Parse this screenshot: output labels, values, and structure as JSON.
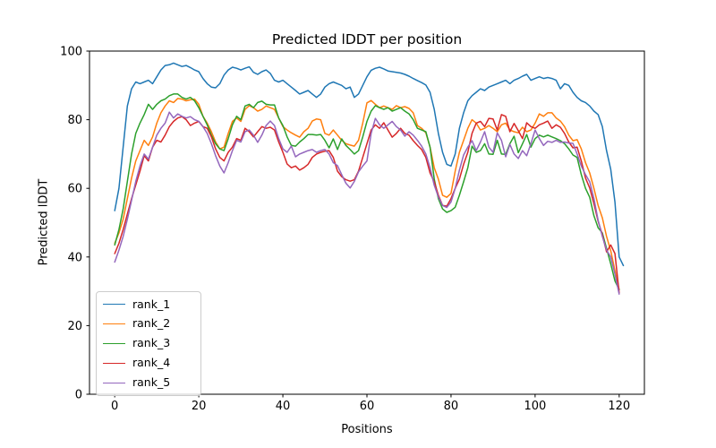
{
  "figure": {
    "title": "Predicted lDDT per position",
    "xlabel": "Positions",
    "ylabel": "Predicted lDDT"
  },
  "chart_data": {
    "type": "line",
    "title": "Predicted lDDT per position",
    "xlabel": "Positions",
    "ylabel": "Predicted lDDT",
    "xlim": [
      -6,
      126
    ],
    "ylim": [
      0,
      100
    ],
    "x_ticks": [
      0,
      20,
      40,
      60,
      80,
      100,
      120
    ],
    "y_ticks": [
      0,
      20,
      40,
      60,
      80,
      100
    ],
    "grid": false,
    "legend_position": "lower left",
    "x": {
      "start": 0,
      "step": 1,
      "count": 121
    },
    "series": [
      {
        "name": "rank_1",
        "color": "#1f77b4",
        "values": [
          53.5,
          60,
          72,
          84,
          89,
          91,
          90.5,
          91,
          91.5,
          90.5,
          92.5,
          94.5,
          95.8,
          96,
          96.5,
          96,
          95.5,
          95.8,
          95.2,
          94.5,
          94,
          92,
          90.5,
          89.5,
          89.3,
          90.5,
          93,
          94.5,
          95.3,
          95,
          94.5,
          95,
          95.4,
          93.8,
          93.2,
          94,
          94.5,
          93.5,
          91.5,
          91,
          91.5,
          90.5,
          89.5,
          88.5,
          87.5,
          88,
          88.5,
          87.5,
          86.5,
          87.5,
          89.5,
          90.5,
          91,
          90.5,
          90,
          89,
          89.5,
          86.5,
          87.5,
          90,
          92.5,
          94.4,
          95,
          95.3,
          94.8,
          94.2,
          94,
          93.8,
          93.6,
          93.2,
          92.7,
          92,
          91.4,
          90.8,
          90.1,
          88,
          83,
          76,
          70.5,
          67,
          66.5,
          70,
          77.5,
          82,
          85.5,
          87,
          88,
          89,
          88.5,
          89.5,
          90,
          90.5,
          91,
          91.5,
          90.5,
          91.5,
          92,
          92.7,
          93.2,
          91.5,
          92,
          92.5,
          92,
          92.3,
          92,
          91.5,
          89,
          90.5,
          90,
          88,
          86.5,
          85.5,
          85,
          84,
          82.5,
          81.5,
          78,
          71,
          65.5,
          56,
          40,
          37.5
        ]
      },
      {
        "name": "rank_2",
        "color": "#ff7f0e",
        "values": [
          44,
          47,
          51,
          57,
          63,
          68,
          71,
          74,
          72.5,
          75,
          79,
          82,
          84,
          85.5,
          85,
          86.2,
          86,
          85.5,
          85.8,
          86,
          84.5,
          81,
          79,
          76.5,
          73.5,
          71.5,
          72,
          76,
          79.5,
          80.5,
          79.5,
          83,
          84.1,
          83.5,
          82.5,
          83,
          84,
          83.5,
          83,
          80.5,
          78,
          77,
          76.2,
          75.5,
          74.9,
          76.5,
          77.5,
          79.6,
          80.2,
          80,
          76,
          75.5,
          77,
          75.5,
          74,
          73,
          72.6,
          72.3,
          74,
          79,
          84.9,
          85.6,
          84.5,
          83.5,
          84,
          83.5,
          83,
          84.1,
          83.5,
          83.8,
          83.3,
          82,
          78.3,
          77.5,
          76.2,
          72,
          66,
          62.7,
          58,
          57.4,
          58.5,
          65,
          70.5,
          74,
          77.5,
          80,
          79,
          77,
          77.5,
          78.3,
          77.5,
          76.5,
          78.5,
          79,
          77,
          76.5,
          76.2,
          77.8,
          76.5,
          77,
          79,
          81.7,
          81,
          82,
          82,
          80.5,
          79.6,
          78,
          75.5,
          73.9,
          74.2,
          71.5,
          67.5,
          64.5,
          60,
          55,
          51.4,
          46,
          41.8,
          36,
          30.5
        ]
      },
      {
        "name": "rank_3",
        "color": "#2ca02c",
        "values": [
          43.5,
          48,
          54,
          62,
          70,
          76,
          79,
          81.5,
          84.5,
          83,
          84.5,
          85.5,
          86,
          87,
          87.5,
          87.5,
          86.5,
          86,
          86.5,
          85.5,
          83.5,
          81,
          78.5,
          75.5,
          73,
          71.5,
          71,
          74.5,
          78.5,
          81,
          80,
          84,
          84.5,
          83.5,
          85,
          85.4,
          84.5,
          84.3,
          84.3,
          80.5,
          78.3,
          75,
          72.5,
          72.3,
          73.5,
          74.5,
          75.7,
          75.7,
          75.5,
          75.7,
          74,
          71.8,
          74.4,
          71.3,
          74.4,
          72.5,
          71.3,
          70,
          71,
          75,
          79.5,
          82.5,
          84.1,
          83.5,
          83,
          83.5,
          82.5,
          83,
          83.5,
          82.5,
          81.7,
          80,
          77.5,
          77,
          76.5,
          72,
          62.7,
          57,
          54,
          53,
          53.5,
          54.5,
          58,
          61.9,
          66,
          72.3,
          70.5,
          71,
          73,
          70,
          69.9,
          74,
          70,
          69.9,
          73,
          75.2,
          70.4,
          73,
          75.7,
          72,
          74.5,
          75.5,
          75,
          75.5,
          75,
          74.5,
          73.9,
          73,
          71.5,
          69.7,
          69,
          64,
          60,
          57.4,
          52,
          48.5,
          47,
          42.5,
          38,
          33,
          30.5
        ]
      },
      {
        "name": "rank_4",
        "color": "#d62728",
        "values": [
          41,
          44,
          48,
          52.5,
          57,
          61,
          65,
          69.5,
          68,
          72,
          74,
          73.5,
          75.5,
          78,
          79.5,
          80.5,
          80.9,
          80,
          78.3,
          79,
          79.5,
          78,
          77.5,
          75,
          71.5,
          69,
          68,
          70.5,
          72,
          74.5,
          74,
          77.5,
          76.5,
          75,
          76.5,
          78,
          77.5,
          77.8,
          77,
          73.5,
          70.5,
          67.1,
          66,
          66.5,
          65.3,
          66,
          67,
          69,
          70,
          70.5,
          70.8,
          71,
          69,
          65,
          63.4,
          62.5,
          62.1,
          62.5,
          65,
          69,
          73,
          77,
          78.5,
          77.5,
          79.1,
          77,
          74.9,
          76,
          77.5,
          76,
          75.5,
          73.9,
          72.5,
          71.3,
          69,
          64.5,
          61.9,
          58,
          55,
          54.8,
          57,
          60,
          62.7,
          67,
          70.5,
          76,
          79,
          79.5,
          78,
          80.4,
          80.2,
          77,
          81.5,
          81,
          76.5,
          78.9,
          76.8,
          74.5,
          79.1,
          78,
          77.5,
          78.5,
          79,
          79.6,
          77.5,
          78.5,
          77.8,
          76,
          73.5,
          71.8,
          72,
          68,
          63,
          60.1,
          55.5,
          50.4,
          46.5,
          41.5,
          43.5,
          41,
          29.5
        ]
      },
      {
        "name": "rank_5",
        "color": "#9467bd",
        "values": [
          38.5,
          42,
          46,
          51,
          56.5,
          62,
          66.5,
          70,
          68.5,
          72,
          75.5,
          77.5,
          79,
          82.2,
          80.5,
          81.7,
          81,
          80.5,
          80.9,
          80,
          79.5,
          78,
          76,
          73,
          69.5,
          66.5,
          64.5,
          67.5,
          71,
          74,
          73.5,
          76.5,
          77,
          75.5,
          73.4,
          75.5,
          78.3,
          79.6,
          78.3,
          74.5,
          71.5,
          70.5,
          72.3,
          69.2,
          70,
          70.5,
          71,
          71.3,
          70.5,
          71,
          71.3,
          70,
          67.5,
          66.6,
          64,
          61.5,
          60.1,
          62,
          64.8,
          66.5,
          68,
          76,
          80.4,
          78.5,
          77.5,
          78.5,
          79.5,
          78,
          77,
          75.2,
          76.5,
          75.5,
          74,
          72.3,
          70,
          66,
          60.9,
          57.5,
          55,
          54.4,
          56,
          60,
          65.3,
          69.7,
          72,
          73.9,
          71,
          73.5,
          76.5,
          72,
          70.5,
          76.2,
          74,
          69.2,
          72.8,
          70,
          68.7,
          71,
          69.5,
          73,
          77,
          74.5,
          72.5,
          73.7,
          73.4,
          74,
          73.4,
          73.5,
          73.2,
          73.1,
          70,
          66.5,
          64,
          61.9,
          57,
          50.7,
          46,
          42,
          40,
          35,
          29.2
        ]
      }
    ]
  }
}
